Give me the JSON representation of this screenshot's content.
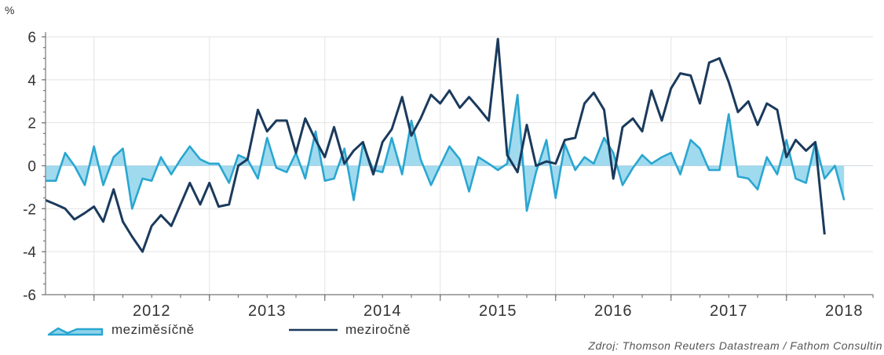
{
  "chart_data": {
    "type": "line",
    "unit": "%",
    "ylim": [
      -6,
      6
    ],
    "yticks": [
      6,
      4,
      2,
      0,
      -2,
      -4,
      -6
    ],
    "xlim": [
      2011.58,
      2018.75
    ],
    "xticks": [
      {
        "label": "2012",
        "x": 2012.5
      },
      {
        "label": "2013",
        "x": 2013.5
      },
      {
        "label": "2014",
        "x": 2014.5
      },
      {
        "label": "2015",
        "x": 2015.5
      },
      {
        "label": "2016",
        "x": 2016.5
      },
      {
        "label": "2017",
        "x": 2017.5
      },
      {
        "label": "2018",
        "x": 2018.5
      }
    ],
    "grid": true,
    "legend_position": "bottom-left",
    "series": [
      {
        "name": "meziměsíčně",
        "style": "area",
        "color": "#2aa6d0",
        "fill": "#8fd3ec",
        "x": [
          2011.58,
          2011.67,
          2011.75,
          2011.83,
          2011.92,
          2012.0,
          2012.08,
          2012.17,
          2012.25,
          2012.33,
          2012.42,
          2012.5,
          2012.58,
          2012.67,
          2012.75,
          2012.83,
          2012.92,
          2013.0,
          2013.08,
          2013.17,
          2013.25,
          2013.33,
          2013.42,
          2013.5,
          2013.58,
          2013.67,
          2013.75,
          2013.83,
          2013.92,
          2014.0,
          2014.08,
          2014.17,
          2014.25,
          2014.33,
          2014.42,
          2014.5,
          2014.58,
          2014.67,
          2014.75,
          2014.83,
          2014.92,
          2015.0,
          2015.08,
          2015.17,
          2015.25,
          2015.33,
          2015.42,
          2015.5,
          2015.58,
          2015.67,
          2015.75,
          2015.83,
          2015.92,
          2016.0,
          2016.08,
          2016.17,
          2016.25,
          2016.33,
          2016.42,
          2016.5,
          2016.58,
          2016.67,
          2016.75,
          2016.83,
          2016.92,
          2017.0,
          2017.08,
          2017.17,
          2017.25,
          2017.33,
          2017.42,
          2017.5,
          2017.58,
          2017.67,
          2017.75,
          2017.83,
          2017.92,
          2018.0,
          2018.08,
          2018.17,
          2018.25,
          2018.33,
          2018.42,
          2018.5,
          2018.58,
          2018.67,
          2018.75
        ],
        "values": [
          -0.7,
          -0.7,
          0.6,
          0.0,
          -0.9,
          0.9,
          -0.9,
          0.4,
          0.8,
          -2.0,
          -0.6,
          -0.7,
          0.4,
          -0.4,
          0.3,
          0.9,
          0.3,
          0.1,
          0.1,
          -0.8,
          0.5,
          0.3,
          -0.6,
          1.3,
          -0.1,
          -0.3,
          0.6,
          -0.6,
          1.6,
          -0.7,
          -0.6,
          0.8,
          -1.6,
          1.0,
          -0.2,
          -0.3,
          1.3,
          -0.4,
          2.1,
          0.3,
          -0.9,
          0.0,
          0.9,
          0.3,
          -1.2,
          0.4,
          0.1,
          -0.2,
          0.1,
          3.3,
          -2.1,
          -0.3,
          1.2,
          -1.5,
          1.0,
          -0.2,
          0.4,
          0.1,
          1.3,
          0.6,
          -0.9,
          -0.1,
          0.5,
          0.1,
          0.4,
          0.6,
          -0.4,
          1.2,
          0.8,
          -0.2,
          -0.2,
          2.4,
          -0.5,
          -0.6,
          -1.1,
          0.4,
          -0.4,
          1.2,
          -0.6,
          -0.8,
          1.1,
          -0.6,
          0.0,
          -1.6,
          null,
          null,
          null
        ]
      },
      {
        "name": "meziročně",
        "style": "line",
        "color": "#1b3a5c",
        "x": [
          2011.58,
          2011.67,
          2011.75,
          2011.83,
          2011.92,
          2012.0,
          2012.08,
          2012.17,
          2012.25,
          2012.33,
          2012.42,
          2012.5,
          2012.58,
          2012.67,
          2012.75,
          2012.83,
          2012.92,
          2013.0,
          2013.08,
          2013.17,
          2013.25,
          2013.33,
          2013.42,
          2013.5,
          2013.58,
          2013.67,
          2013.75,
          2013.83,
          2013.92,
          2014.0,
          2014.08,
          2014.17,
          2014.25,
          2014.33,
          2014.42,
          2014.5,
          2014.58,
          2014.67,
          2014.75,
          2014.83,
          2014.92,
          2015.0,
          2015.08,
          2015.17,
          2015.25,
          2015.33,
          2015.42,
          2015.5,
          2015.58,
          2015.67,
          2015.75,
          2015.83,
          2015.92,
          2016.0,
          2016.08,
          2016.17,
          2016.25,
          2016.33,
          2016.42,
          2016.5,
          2016.58,
          2016.67,
          2016.75,
          2016.83,
          2016.92,
          2017.0,
          2017.08,
          2017.17,
          2017.25,
          2017.33,
          2017.42,
          2017.5,
          2017.58,
          2017.67,
          2017.75,
          2017.83,
          2017.92,
          2018.0,
          2018.08,
          2018.17,
          2018.25,
          2018.33,
          2018.42,
          2018.5,
          2018.58,
          2018.67,
          2018.75
        ],
        "values": [
          -1.6,
          -1.8,
          -2.0,
          -2.5,
          -2.2,
          -1.9,
          -2.6,
          -1.1,
          -2.6,
          -3.3,
          -4.0,
          -2.8,
          -2.3,
          -2.8,
          -1.8,
          -0.8,
          -1.8,
          -0.8,
          -1.9,
          -1.8,
          0.0,
          0.3,
          2.6,
          1.6,
          2.1,
          2.1,
          0.6,
          2.2,
          1.2,
          0.4,
          1.8,
          0.1,
          0.7,
          1.1,
          -0.4,
          1.1,
          1.7,
          3.2,
          1.4,
          2.2,
          3.3,
          2.9,
          3.5,
          2.7,
          3.2,
          2.7,
          2.1,
          5.9,
          0.5,
          -0.3,
          1.9,
          0.0,
          0.2,
          0.1,
          1.2,
          1.3,
          2.9,
          3.4,
          2.6,
          -0.6,
          1.8,
          2.2,
          1.6,
          3.5,
          2.1,
          3.6,
          4.3,
          4.2,
          2.9,
          4.8,
          5.0,
          3.9,
          2.5,
          3.0,
          1.9,
          2.9,
          2.6,
          0.4,
          1.2,
          0.7,
          1.1,
          -3.2,
          null,
          null,
          null,
          null,
          null
        ]
      }
    ],
    "source": "Zdroj: Thomson Reuters Datastream / Fathom Consultin"
  }
}
